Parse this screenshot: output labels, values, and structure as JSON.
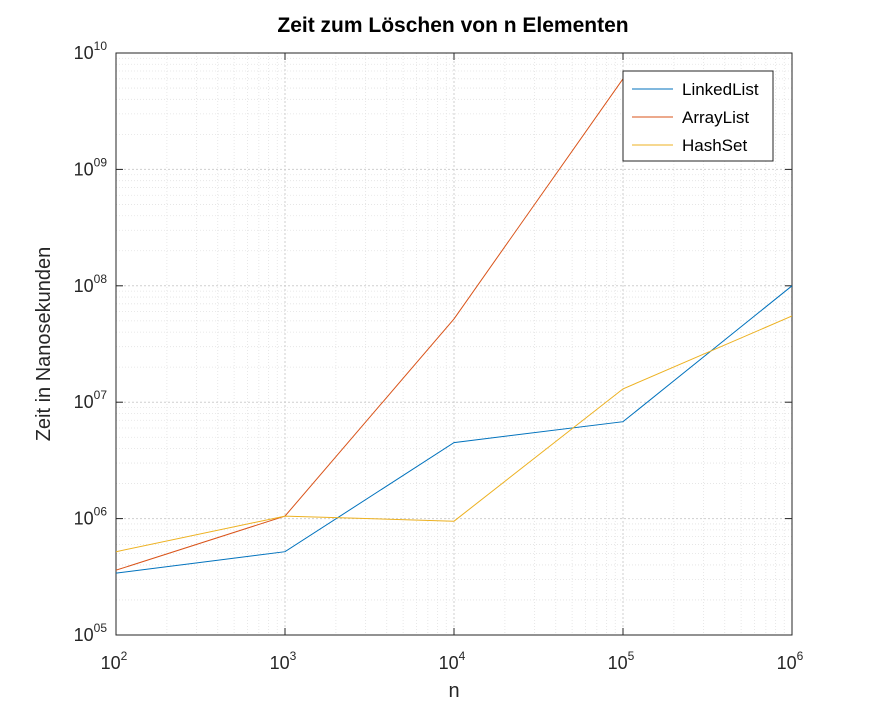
{
  "chart_data": {
    "type": "line",
    "title": "Zeit zum Löschen von n Elementen",
    "xlabel": "n",
    "ylabel": "Zeit in Nanosekunden",
    "xscale": "log",
    "yscale": "log",
    "xlim": [
      100,
      1000000
    ],
    "ylim": [
      100000,
      10000000000
    ],
    "grid": true,
    "minor_grid": true,
    "legend_position": "top-right",
    "x": [
      100,
      1000,
      10000,
      100000,
      1000000
    ],
    "x_tick_labels": [
      {
        "base": "10",
        "exp": "2"
      },
      {
        "base": "10",
        "exp": "3"
      },
      {
        "base": "10",
        "exp": "4"
      },
      {
        "base": "10",
        "exp": "5"
      },
      {
        "base": "10",
        "exp": "6"
      }
    ],
    "y_tick_labels": [
      {
        "base": "10",
        "exp": "05"
      },
      {
        "base": "10",
        "exp": "06"
      },
      {
        "base": "10",
        "exp": "07"
      },
      {
        "base": "10",
        "exp": "08"
      },
      {
        "base": "10",
        "exp": "09"
      },
      {
        "base": "10",
        "exp": "10"
      }
    ],
    "series": [
      {
        "name": "LinkedList",
        "color": "#0072BD",
        "values": [
          340000,
          520000,
          4500000,
          6800000,
          100000000
        ]
      },
      {
        "name": "ArrayList",
        "color": "#D95319",
        "values": [
          360000,
          1050000,
          52000000,
          6000000000,
          null
        ]
      },
      {
        "name": "HashSet",
        "color": "#EDB120",
        "values": [
          520000,
          1050000,
          950000,
          13000000,
          55000000
        ]
      }
    ]
  }
}
